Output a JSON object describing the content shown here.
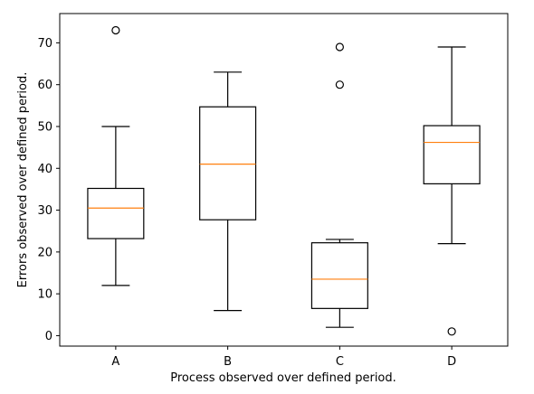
{
  "chart_data": {
    "type": "boxplot",
    "xlabel": "Process observed over defined period.",
    "ylabel": "Errors observed over defined period.",
    "categories": [
      "A",
      "B",
      "C",
      "D"
    ],
    "ylim": [
      -2.5,
      77
    ],
    "yticks": [
      0,
      10,
      20,
      30,
      40,
      50,
      60,
      70
    ],
    "grid": false,
    "box_color": "#000000",
    "median_color": "#ff7f0e",
    "boxes": [
      {
        "label": "A",
        "whisker_low": 12,
        "q1": 23.2,
        "median": 30.5,
        "q3": 35.2,
        "whisker_high": 50,
        "outliers": [
          73
        ]
      },
      {
        "label": "B",
        "whisker_low": 6,
        "q1": 27.7,
        "median": 41,
        "q3": 54.7,
        "whisker_high": 63,
        "outliers": []
      },
      {
        "label": "C",
        "whisker_low": 2,
        "q1": 6.5,
        "median": 13.5,
        "q3": 22.2,
        "whisker_high": 23,
        "outliers": [
          60,
          69
        ]
      },
      {
        "label": "D",
        "whisker_low": 22,
        "q1": 36.3,
        "median": 46.2,
        "q3": 50.2,
        "whisker_high": 69,
        "outliers": [
          1
        ]
      }
    ]
  }
}
